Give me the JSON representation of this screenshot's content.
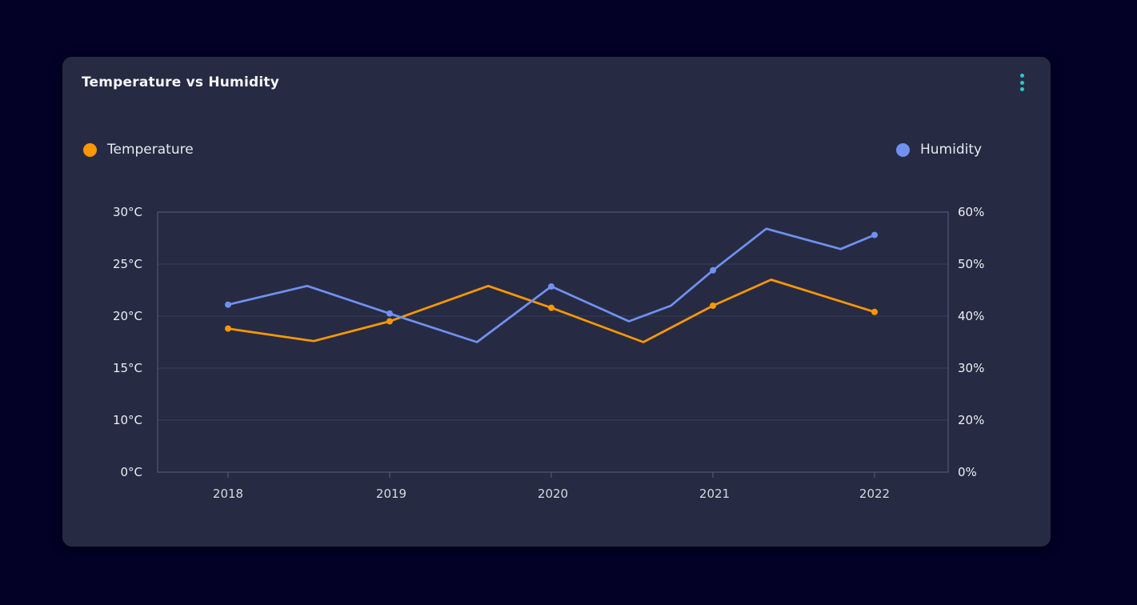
{
  "card": {
    "title": "Temperature vs Humidity",
    "menu_icon": "kebab-vertical-icon"
  },
  "colors": {
    "page_bg": "#030125",
    "card_bg": "#262b43",
    "accent_teal": "#2cc7c7",
    "grid_line": "#3a3f58",
    "axis_border": "#515572",
    "temperature_orange": "#fe9702",
    "humidity_blue": "#7190ef"
  },
  "chart_data": {
    "type": "line",
    "title": "Temperature vs Humidity",
    "legend_position": "top",
    "grid": true,
    "x_ticks": [
      2018,
      2019,
      2020,
      2021,
      2022
    ],
    "x_labels": [
      "2018",
      "2019",
      "2020",
      "2021",
      "2022"
    ],
    "left_axis": {
      "unit": "°C",
      "range": [
        0,
        30
      ],
      "ticks": [
        0,
        10,
        15,
        20,
        25,
        30
      ],
      "labels": [
        "0°C",
        "10°C",
        "15°C",
        "20°C",
        "25°C",
        "30°C"
      ]
    },
    "right_axis": {
      "unit": "%",
      "range": [
        0,
        60
      ],
      "ticks": [
        0,
        20,
        30,
        40,
        50,
        60
      ],
      "labels": [
        "0%",
        "20%",
        "30%",
        "40%",
        "50%",
        "60%"
      ]
    },
    "series": [
      {
        "name": "Temperature",
        "axis": "left",
        "color": "#fe9702",
        "points": [
          [
            2018,
            18.8
          ],
          [
            2018.53,
            17.6
          ],
          [
            2019,
            19.5
          ],
          [
            2019.61,
            22.9
          ],
          [
            2020,
            20.8
          ],
          [
            2020.57,
            17.5
          ],
          [
            2021,
            21.0
          ],
          [
            2021.36,
            23.5
          ],
          [
            2022,
            20.4
          ]
        ]
      },
      {
        "name": "Humidity",
        "axis": "right",
        "color": "#7190ef",
        "points": [
          [
            2018,
            42.2
          ],
          [
            2018.49,
            45.8
          ],
          [
            2019,
            40.5
          ],
          [
            2019.54,
            35.0
          ],
          [
            2020,
            45.7
          ],
          [
            2020.48,
            39.0
          ],
          [
            2020.74,
            42.0
          ],
          [
            2021,
            48.8
          ],
          [
            2021.33,
            56.8
          ],
          [
            2021.79,
            52.9
          ],
          [
            2022,
            55.6
          ]
        ]
      }
    ],
    "markers_at_integer_years": true
  }
}
